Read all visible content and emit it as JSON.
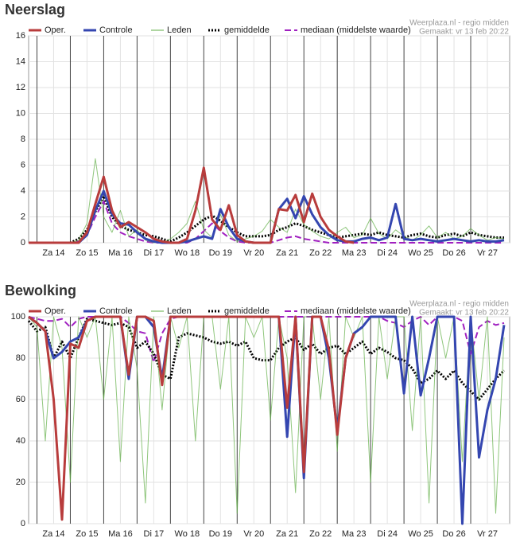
{
  "chart_data": [
    {
      "type": "line",
      "title": "Neerslag",
      "source": "Weerplaza.nl - regio midden",
      "created": "Gemaakt: vr 13 feb 20:22",
      "x": [
        -6,
        0,
        6,
        12,
        18,
        24,
        30,
        36,
        42,
        48,
        54,
        60,
        66,
        72,
        78,
        84,
        90,
        96,
        102,
        108,
        114,
        120,
        126,
        132,
        138,
        144,
        150,
        156,
        162,
        168,
        174,
        180,
        186,
        192,
        198,
        204,
        210,
        216,
        222,
        228,
        234,
        240,
        246,
        252,
        258,
        264,
        270,
        276,
        282,
        288,
        294,
        300,
        306,
        312,
        318,
        324,
        330,
        336
      ],
      "xlim": [
        -6,
        340
      ],
      "xticks": [
        {
          "value": 12,
          "label": "Za 14"
        },
        {
          "value": 36,
          "label": "Zo 15"
        },
        {
          "value": 60,
          "label": "Ma 16"
        },
        {
          "value": 84,
          "label": "Di 17"
        },
        {
          "value": 108,
          "label": "Wo 18"
        },
        {
          "value": 132,
          "label": "Do 19"
        },
        {
          "value": 156,
          "label": "Vr 20"
        },
        {
          "value": 180,
          "label": "Za 21"
        },
        {
          "value": 204,
          "label": "Zo 22"
        },
        {
          "value": 228,
          "label": "Ma 23"
        },
        {
          "value": 252,
          "label": "Di 24"
        },
        {
          "value": 276,
          "label": "Wo 25"
        },
        {
          "value": 300,
          "label": "Do 26"
        },
        {
          "value": 324,
          "label": "Vr 27"
        }
      ],
      "ylim": [
        0,
        16
      ],
      "yticks": [
        0,
        2,
        4,
        6,
        8,
        10,
        12,
        14,
        16
      ],
      "grid": true,
      "series": [
        {
          "name": "Oper.",
          "color": "#b83c3c",
          "line_style": "solid",
          "line_width": 3,
          "values": [
            0,
            0,
            0,
            0,
            0,
            0,
            0,
            0.8,
            3,
            5.1,
            2.5,
            1.2,
            1.6,
            1.2,
            0.8,
            0.3,
            0.1,
            0,
            0,
            0.3,
            2.5,
            5.8,
            1.8,
            1,
            2.9,
            0.6,
            0.1,
            0,
            0,
            0,
            2.6,
            2.5,
            3.7,
            1.6,
            3.8,
            2,
            1,
            0.5,
            0.1,
            0,
            null,
            null,
            null,
            null,
            null,
            null,
            null,
            null,
            null,
            null,
            null,
            null,
            null,
            null,
            null,
            null,
            null,
            null
          ]
        },
        {
          "name": "Controle",
          "color": "#3446b0",
          "line_style": "solid",
          "line_width": 3,
          "values": [
            0,
            0,
            0,
            0,
            0,
            0,
            0,
            0.6,
            2.5,
            4,
            2.2,
            1.5,
            1.4,
            0.8,
            0.3,
            0.1,
            0,
            0,
            0,
            0.1,
            0.3,
            0.5,
            0.3,
            2.6,
            1.2,
            0.3,
            0.1,
            0,
            0,
            0,
            2.6,
            3.4,
            1.9,
            3.6,
            2.2,
            1.2,
            0.6,
            0.2,
            0.1,
            0.1,
            0.3,
            0.4,
            0.2,
            0.4,
            3,
            0.3,
            0.2,
            0.3,
            0.2,
            0.1,
            0.2,
            0.3,
            0.2,
            0.1,
            0.2,
            0.1,
            0.1,
            0.2
          ]
        },
        {
          "name": "Leden",
          "color": "#5fae45",
          "line_style": "solid",
          "line_width": 1,
          "values": [
            0,
            0,
            0,
            0,
            0,
            0,
            0.2,
            1.5,
            6.5,
            2,
            0.8,
            2.5,
            0.5,
            1,
            0.2,
            0,
            0,
            0.3,
            0.8,
            1.5,
            3.2,
            1,
            0.4,
            2.2,
            0.6,
            0.1,
            0.3,
            0.5,
            0.9,
            1.8,
            1.2,
            0.8,
            2.6,
            1.4,
            0.9,
            0.5,
            0.3,
            0.8,
            1.2,
            0.4,
            0.6,
            1.9,
            0.7,
            0.3,
            1,
            0.5,
            0.2,
            0.6,
            1.3,
            0.4,
            0.8,
            0.3,
            0.5,
            1.1,
            0.6,
            0.2,
            0.4,
            0.3
          ]
        },
        {
          "name": "gemiddelde",
          "color": "#000000",
          "line_style": "dotted",
          "line_width": 3,
          "values": [
            0,
            0,
            0,
            0,
            0,
            0,
            0.3,
            1,
            2.4,
            3.6,
            2,
            1.3,
            1,
            0.8,
            0.6,
            0.5,
            0.3,
            0.1,
            0.4,
            0.8,
            1.3,
            1.8,
            2.1,
            1.7,
            1.2,
            0.8,
            0.5,
            0.5,
            0.5,
            0.6,
            1,
            1.2,
            1.5,
            1.3,
            1,
            0.8,
            0.6,
            0.4,
            0.5,
            0.6,
            0.7,
            0.6,
            0.8,
            0.6,
            0.5,
            0.4,
            0.6,
            0.7,
            0.5,
            0.4,
            0.6,
            0.7,
            0.5,
            0.8,
            0.6,
            0.5,
            0.4,
            0.4
          ]
        },
        {
          "name": "mediaan (middelste waarde)",
          "color": "#a020c0",
          "line_style": "dashed",
          "line_width": 2,
          "values": [
            0,
            0,
            0,
            0,
            0,
            0,
            0.1,
            0.6,
            2,
            3.2,
            1.5,
            0.8,
            0.5,
            0.3,
            0.1,
            0,
            0,
            0,
            0,
            0,
            0.3,
            0.9,
            1.5,
            0.9,
            0.4,
            0.1,
            0,
            0,
            0,
            0,
            0.2,
            0.4,
            0.5,
            0.3,
            0.2,
            0.1,
            0,
            0,
            0,
            0,
            0,
            0,
            0,
            0,
            0,
            0,
            0,
            0,
            0,
            0,
            0,
            0,
            0,
            0,
            0,
            0,
            0,
            0
          ]
        }
      ]
    },
    {
      "type": "line",
      "title": "Bewolking",
      "source": "Weerplaza.nl - regio midden",
      "created": "Gemaakt: vr 13 feb 20:22",
      "x": [
        -6,
        0,
        6,
        12,
        18,
        24,
        30,
        36,
        42,
        48,
        54,
        60,
        66,
        72,
        78,
        84,
        90,
        96,
        102,
        108,
        114,
        120,
        126,
        132,
        138,
        144,
        150,
        156,
        162,
        168,
        174,
        180,
        186,
        192,
        198,
        204,
        210,
        216,
        222,
        228,
        234,
        240,
        246,
        252,
        258,
        264,
        270,
        276,
        282,
        288,
        294,
        300,
        306,
        312,
        318,
        324,
        330,
        336
      ],
      "xlim": [
        -6,
        340
      ],
      "xticks": [
        {
          "value": 12,
          "label": "Za 14"
        },
        {
          "value": 36,
          "label": "Zo 15"
        },
        {
          "value": 60,
          "label": "Ma 16"
        },
        {
          "value": 84,
          "label": "Di 17"
        },
        {
          "value": 108,
          "label": "Wo 18"
        },
        {
          "value": 132,
          "label": "Do 19"
        },
        {
          "value": 156,
          "label": "Vr 20"
        },
        {
          "value": 180,
          "label": "Za 21"
        },
        {
          "value": 204,
          "label": "Zo 22"
        },
        {
          "value": 228,
          "label": "Ma 23"
        },
        {
          "value": 252,
          "label": "Di 24"
        },
        {
          "value": 276,
          "label": "Wo 25"
        },
        {
          "value": 300,
          "label": "Do 26"
        },
        {
          "value": 324,
          "label": "Vr 27"
        }
      ],
      "ylim": [
        0,
        100
      ],
      "yticks": [
        0,
        20,
        40,
        60,
        80,
        100
      ],
      "grid": true,
      "series": [
        {
          "name": "Oper.",
          "color": "#b83c3c",
          "line_style": "solid",
          "line_width": 3,
          "values": [
            100,
            97,
            93,
            60,
            2,
            87,
            85,
            98,
            100,
            100,
            100,
            100,
            72,
            100,
            100,
            98,
            67,
            100,
            100,
            100,
            100,
            100,
            100,
            100,
            100,
            100,
            100,
            100,
            100,
            100,
            100,
            56,
            100,
            25,
            100,
            100,
            84,
            43,
            80,
            92,
            null,
            null,
            null,
            null,
            null,
            null,
            null,
            null,
            null,
            null,
            null,
            null,
            null,
            null,
            null,
            null,
            null,
            null
          ]
        },
        {
          "name": "Controle",
          "color": "#3446b0",
          "line_style": "solid",
          "line_width": 3,
          "values": [
            100,
            97,
            93,
            80,
            83,
            88,
            90,
            98,
            100,
            100,
            100,
            100,
            70,
            100,
            100,
            95,
            70,
            100,
            100,
            100,
            100,
            100,
            100,
            100,
            100,
            100,
            100,
            100,
            100,
            100,
            100,
            42,
            100,
            22,
            100,
            100,
            80,
            45,
            80,
            92,
            95,
            100,
            100,
            100,
            100,
            63,
            100,
            62,
            80,
            100,
            100,
            100,
            0,
            100,
            32,
            55,
            70,
            96
          ]
        },
        {
          "name": "Leden",
          "color": "#5fae45",
          "line_style": "solid",
          "line_width": 1,
          "values": [
            100,
            95,
            40,
            100,
            85,
            20,
            100,
            90,
            100,
            60,
            100,
            30,
            100,
            75,
            10,
            100,
            55,
            100,
            85,
            100,
            40,
            100,
            100,
            65,
            100,
            5,
            100,
            90,
            100,
            50,
            100,
            80,
            15,
            100,
            100,
            60,
            100,
            35,
            100,
            90,
            100,
            20,
            100,
            70,
            100,
            100,
            45,
            100,
            10,
            100,
            80,
            100,
            30,
            100,
            60,
            100,
            5,
            90
          ]
        },
        {
          "name": "gemiddelde",
          "color": "#000000",
          "line_style": "dotted",
          "line_width": 3,
          "values": [
            98,
            93,
            95,
            80,
            88,
            80,
            90,
            99,
            98,
            97,
            96,
            97,
            95,
            85,
            88,
            82,
            72,
            70,
            90,
            92,
            91,
            90,
            88,
            87,
            88,
            86,
            88,
            80,
            79,
            79,
            85,
            88,
            90,
            84,
            87,
            82,
            85,
            86,
            82,
            85,
            88,
            82,
            85,
            83,
            80,
            79,
            75,
            68,
            70,
            74,
            70,
            74,
            68,
            64,
            60,
            65,
            70,
            74
          ]
        },
        {
          "name": "mediaan (middelste waarde)",
          "color": "#a020c0",
          "line_style": "dashed",
          "line_width": 2,
          "values": [
            100,
            99,
            98,
            98,
            99,
            95,
            99,
            100,
            100,
            100,
            100,
            100,
            97,
            93,
            92,
            78,
            92,
            99,
            100,
            100,
            100,
            100,
            100,
            100,
            100,
            100,
            100,
            100,
            100,
            100,
            100,
            100,
            100,
            100,
            100,
            100,
            100,
            100,
            100,
            100,
            100,
            100,
            100,
            98,
            97,
            95,
            98,
            100,
            96,
            100,
            100,
            100,
            98,
            82,
            95,
            98,
            96,
            97
          ]
        }
      ]
    }
  ]
}
